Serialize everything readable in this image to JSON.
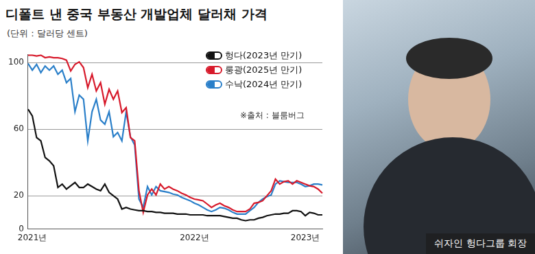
{
  "chart_data": {
    "type": "line",
    "title": "디폴트 낸 중국 부동산 개발업체 달러채 가격",
    "subtitle": "(단위 : 달러당 센트)",
    "source": "※출처 : 블룸버그",
    "caption": "쉬자인 헝다그룹 회장",
    "categories": [
      null,
      "2021년",
      null,
      null,
      null,
      null,
      null,
      null,
      null,
      null,
      null,
      null,
      null,
      null,
      null,
      null,
      null,
      null,
      null,
      null,
      null,
      null,
      null,
      null,
      null,
      null,
      null,
      null,
      null,
      null,
      null,
      null,
      null,
      null,
      null,
      null,
      null,
      null,
      null,
      "2022년",
      null,
      null,
      null,
      null,
      null,
      null,
      null,
      null,
      null,
      null,
      null,
      null,
      null,
      null,
      null,
      null,
      null,
      null,
      null,
      null,
      null,
      null,
      null,
      null,
      null,
      "2023년",
      null,
      null,
      null,
      null
    ],
    "series": [
      {
        "name": "헝다(2023년 만기)",
        "color": "#111111",
        "values": [
          72,
          68,
          55,
          53,
          43,
          41,
          38,
          25,
          27,
          24,
          26,
          28,
          25,
          25,
          27,
          25.5,
          24,
          23,
          27,
          22,
          20,
          18,
          12,
          13,
          12,
          11.5,
          11,
          11,
          10.5,
          10.5,
          10,
          10,
          9.5,
          9.5,
          9.5,
          9,
          9,
          9,
          8.5,
          8.5,
          8.5,
          8.5,
          8,
          8,
          8,
          8,
          7.5,
          7,
          6.5,
          6.5,
          5.5,
          5,
          5.5,
          5.5,
          6.5,
          7,
          8,
          8.5,
          9,
          9,
          9.5,
          9.5,
          11,
          11,
          10.5,
          8,
          10,
          9.5,
          8.5,
          8.5
        ]
      },
      {
        "name": "룽광(2025년 만기)",
        "color": "#d7192a",
        "values": [
          104.5,
          104.5,
          104,
          104.5,
          103,
          103.5,
          103,
          103,
          102.5,
          101.5,
          95,
          99,
          100.5,
          97,
          85,
          93,
          83,
          88,
          75,
          84,
          78,
          83,
          70,
          73,
          55,
          53,
          23,
          10,
          20.5,
          24,
          20.5,
          27,
          24,
          25.5,
          24,
          23,
          21.5,
          20.5,
          19,
          18,
          17.5,
          17,
          15,
          13,
          14.5,
          15.5,
          14,
          13,
          11.5,
          10.5,
          10.5,
          10.5,
          12,
          15.5,
          16,
          17,
          20,
          23,
          30,
          27,
          28.5,
          29,
          27,
          29,
          28,
          27,
          26,
          25.5,
          24,
          21.5
        ]
      },
      {
        "name": "수낙(2024년 만기)",
        "color": "#2a7fc9",
        "values": [
          99.5,
          95.5,
          99,
          94,
          98,
          95.5,
          98,
          93,
          95.5,
          88,
          90.5,
          70.5,
          80.5,
          78,
          53,
          70.5,
          78,
          65.5,
          63,
          70.5,
          55.5,
          58,
          53,
          70.5,
          55.5,
          50.5,
          18,
          13,
          25.5,
          20.5,
          25.5,
          23,
          22.5,
          22,
          21,
          20.5,
          19,
          18,
          17,
          15.5,
          14.5,
          13,
          11.5,
          10.5,
          11.5,
          13,
          12.5,
          11.5,
          10,
          9,
          9,
          9,
          11,
          13,
          16,
          18,
          19.5,
          20.5,
          27,
          29,
          28.5,
          28,
          28,
          28,
          27,
          25.5,
          26,
          27,
          27,
          26.5
        ]
      }
    ],
    "ylim": [
      0,
      105
    ],
    "yticks": [
      0,
      20,
      60,
      100
    ],
    "grid": true,
    "legend": "upper right"
  }
}
